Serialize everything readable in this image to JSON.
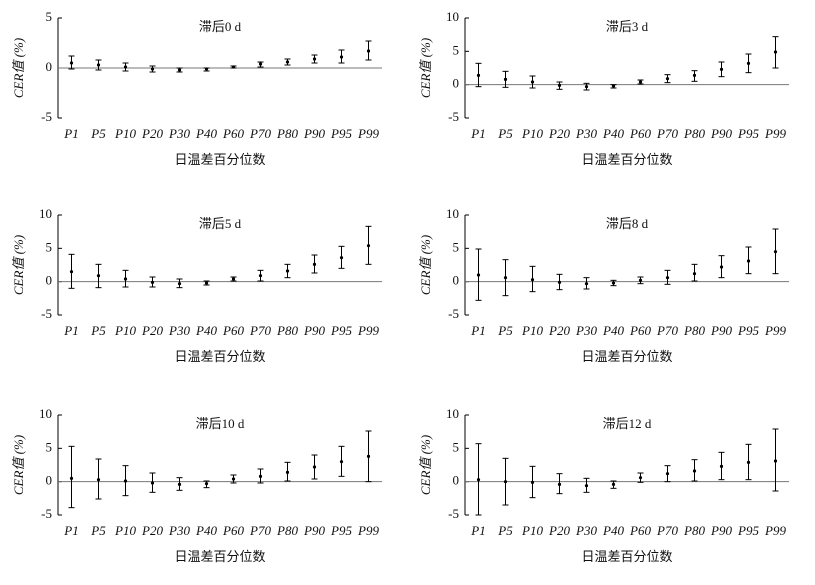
{
  "chart_data": [
    {
      "type": "errorbar",
      "title": "滞后0 d",
      "xlabel": "日温差百分位数",
      "ylabel": "CER值 (%)",
      "categories": [
        "P1",
        "P5",
        "P10",
        "P20",
        "P30",
        "P40",
        "P60",
        "P70",
        "P80",
        "P90",
        "P95",
        "P99"
      ],
      "values": [
        0.5,
        0.3,
        0.1,
        -0.1,
        -0.2,
        -0.1,
        0.1,
        0.4,
        0.6,
        0.9,
        1.1,
        1.7
      ],
      "lower": [
        -0.1,
        -0.2,
        -0.3,
        -0.4,
        -0.4,
        -0.3,
        0.0,
        0.1,
        0.3,
        0.5,
        0.5,
        0.8
      ],
      "upper": [
        1.2,
        0.8,
        0.5,
        0.2,
        0.0,
        0.0,
        0.2,
        0.6,
        0.9,
        1.3,
        1.8,
        2.7
      ],
      "ylim": [
        -5,
        5
      ],
      "yticks": [
        -5,
        0,
        5
      ],
      "color": "#000000"
    },
    {
      "type": "errorbar",
      "title": "滞后3 d",
      "xlabel": "日温差百分位数",
      "ylabel": "CER值 (%)",
      "categories": [
        "P1",
        "P5",
        "P10",
        "P20",
        "P30",
        "P40",
        "P60",
        "P70",
        "P80",
        "P90",
        "P95",
        "P99"
      ],
      "values": [
        1.4,
        0.8,
        0.4,
        -0.1,
        -0.3,
        -0.2,
        0.4,
        0.9,
        1.4,
        2.3,
        3.2,
        4.9
      ],
      "lower": [
        -0.3,
        -0.4,
        -0.5,
        -0.7,
        -0.8,
        -0.5,
        0.1,
        0.3,
        0.5,
        1.2,
        1.8,
        2.5
      ],
      "upper": [
        3.2,
        2.0,
        1.3,
        0.4,
        0.2,
        0.0,
        0.7,
        1.5,
        2.1,
        3.4,
        4.6,
        7.2
      ],
      "ylim": [
        -5,
        10
      ],
      "yticks": [
        -5,
        0,
        5,
        10
      ],
      "color": "#000000"
    },
    {
      "type": "errorbar",
      "title": "滞后5 d",
      "xlabel": "日温差百分位数",
      "ylabel": "CER值 (%)",
      "categories": [
        "P1",
        "P5",
        "P10",
        "P20",
        "P30",
        "P40",
        "P60",
        "P70",
        "P80",
        "P90",
        "P95",
        "P99"
      ],
      "values": [
        1.5,
        0.9,
        0.4,
        -0.1,
        -0.3,
        -0.2,
        0.4,
        0.9,
        1.6,
        2.6,
        3.6,
        5.4
      ],
      "lower": [
        -1.0,
        -0.9,
        -0.8,
        -0.8,
        -0.9,
        -0.5,
        0.1,
        0.1,
        0.6,
        1.3,
        2.0,
        2.6
      ],
      "upper": [
        4.1,
        2.6,
        1.7,
        0.7,
        0.4,
        0.1,
        0.7,
        1.7,
        2.6,
        4.0,
        5.3,
        8.3
      ],
      "ylim": [
        -5,
        10
      ],
      "yticks": [
        -5,
        0,
        5,
        10
      ],
      "color": "#000000"
    },
    {
      "type": "errorbar",
      "title": "滞后8 d",
      "xlabel": "日温差百分位数",
      "ylabel": "CER值 (%)",
      "categories": [
        "P1",
        "P5",
        "P10",
        "P20",
        "P30",
        "P40",
        "P60",
        "P70",
        "P80",
        "P90",
        "P95",
        "P99"
      ],
      "values": [
        1.0,
        0.6,
        0.3,
        -0.1,
        -0.3,
        -0.2,
        0.2,
        0.6,
        1.2,
        2.2,
        3.1,
        4.5
      ],
      "lower": [
        -2.8,
        -2.1,
        -1.5,
        -1.2,
        -1.1,
        -0.6,
        -0.3,
        -0.4,
        0.1,
        0.6,
        1.2,
        1.2
      ],
      "upper": [
        4.9,
        3.3,
        2.3,
        1.1,
        0.6,
        0.2,
        0.7,
        1.7,
        2.6,
        3.9,
        5.2,
        7.9
      ],
      "ylim": [
        -5,
        10
      ],
      "yticks": [
        -5,
        0,
        5,
        10
      ],
      "color": "#000000"
    },
    {
      "type": "errorbar",
      "title": "滞后10 d",
      "xlabel": "日温差百分位数",
      "ylabel": "CER值 (%)",
      "categories": [
        "P1",
        "P5",
        "P10",
        "P20",
        "P30",
        "P40",
        "P60",
        "P70",
        "P80",
        "P90",
        "P95",
        "P99"
      ],
      "values": [
        0.5,
        0.3,
        0.1,
        -0.2,
        -0.4,
        -0.3,
        0.4,
        0.8,
        1.4,
        2.2,
        3.0,
        3.8
      ],
      "lower": [
        -3.9,
        -2.6,
        -2.1,
        -1.6,
        -1.3,
        -0.9,
        -0.2,
        -0.2,
        0.1,
        0.4,
        0.8,
        0.0
      ],
      "upper": [
        5.3,
        3.4,
        2.4,
        1.3,
        0.6,
        0.1,
        1.0,
        1.9,
        2.9,
        4.0,
        5.3,
        7.6
      ],
      "ylim": [
        -5,
        10
      ],
      "yticks": [
        -5,
        0,
        5,
        10
      ],
      "color": "#000000"
    },
    {
      "type": "errorbar",
      "title": "滞后12 d",
      "xlabel": "日温差百分位数",
      "ylabel": "CER值 (%)",
      "categories": [
        "P1",
        "P5",
        "P10",
        "P20",
        "P30",
        "P40",
        "P60",
        "P70",
        "P80",
        "P90",
        "P95",
        "P99"
      ],
      "values": [
        0.3,
        0.0,
        -0.1,
        -0.4,
        -0.6,
        -0.4,
        0.6,
        1.2,
        1.6,
        2.3,
        2.9,
        3.1
      ],
      "lower": [
        -5.0,
        -3.5,
        -2.4,
        -1.8,
        -1.6,
        -1.0,
        -0.1,
        0.0,
        0.1,
        0.3,
        0.3,
        -1.4
      ],
      "upper": [
        5.7,
        3.5,
        2.3,
        1.2,
        0.5,
        0.1,
        1.3,
        2.4,
        3.3,
        4.4,
        5.6,
        7.9
      ],
      "ylim": [
        -5,
        10
      ],
      "yticks": [
        -5,
        0,
        5,
        10
      ],
      "color": "#000000"
    }
  ]
}
